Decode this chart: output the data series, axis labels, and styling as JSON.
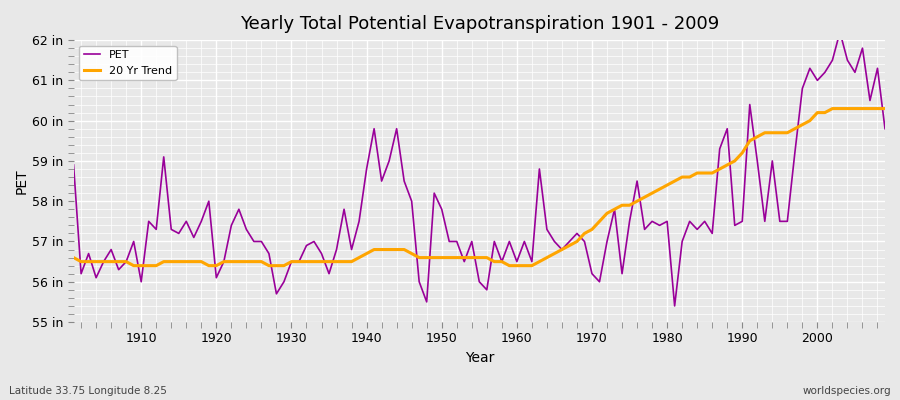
{
  "title": "Yearly Total Potential Evapotranspiration 1901 - 2009",
  "xlabel": "Year",
  "ylabel": "PET",
  "subtitle_left": "Latitude 33.75 Longitude 8.25",
  "watermark": "worldspecies.org",
  "pet_color": "#990099",
  "trend_color": "#ffa500",
  "ylim": [
    55,
    62
  ],
  "xlim": [
    1901,
    2009
  ],
  "yticks": [
    55,
    56,
    57,
    58,
    59,
    60,
    61,
    62
  ],
  "ytick_labels": [
    "55 in",
    "56 in",
    "57 in",
    "58 in",
    "59 in",
    "60 in",
    "61 in",
    "62 in"
  ],
  "xticks": [
    1910,
    1920,
    1930,
    1940,
    1950,
    1960,
    1970,
    1980,
    1990,
    2000
  ],
  "background_color": "#e8e8e8",
  "plot_bg_color": "#e8e8e8",
  "grid_color": "#ffffff",
  "pet_data": {
    "years": [
      1901,
      1902,
      1903,
      1904,
      1905,
      1906,
      1907,
      1908,
      1909,
      1910,
      1911,
      1912,
      1913,
      1914,
      1915,
      1916,
      1917,
      1918,
      1919,
      1920,
      1921,
      1922,
      1923,
      1924,
      1925,
      1926,
      1927,
      1928,
      1929,
      1930,
      1931,
      1932,
      1933,
      1934,
      1935,
      1936,
      1937,
      1938,
      1939,
      1940,
      1941,
      1942,
      1943,
      1944,
      1945,
      1946,
      1947,
      1948,
      1949,
      1950,
      1951,
      1952,
      1953,
      1954,
      1955,
      1956,
      1957,
      1958,
      1959,
      1960,
      1961,
      1962,
      1963,
      1964,
      1965,
      1966,
      1967,
      1968,
      1969,
      1970,
      1971,
      1972,
      1973,
      1974,
      1975,
      1976,
      1977,
      1978,
      1979,
      1980,
      1981,
      1982,
      1983,
      1984,
      1985,
      1986,
      1987,
      1988,
      1989,
      1990,
      1991,
      1992,
      1993,
      1994,
      1995,
      1996,
      1997,
      1998,
      1999,
      2000,
      2001,
      2002,
      2003,
      2004,
      2005,
      2006,
      2007,
      2008,
      2009
    ],
    "values": [
      58.9,
      56.2,
      56.7,
      56.1,
      56.5,
      56.8,
      56.3,
      56.5,
      57.0,
      56.0,
      57.5,
      57.3,
      59.1,
      57.3,
      57.2,
      57.5,
      57.1,
      57.5,
      58.0,
      56.1,
      56.5,
      57.4,
      57.8,
      57.3,
      57.0,
      57.0,
      56.7,
      55.7,
      56.0,
      56.5,
      56.5,
      56.9,
      57.0,
      56.7,
      56.2,
      56.8,
      57.8,
      56.8,
      57.5,
      58.8,
      59.8,
      58.5,
      59.0,
      59.8,
      58.5,
      58.0,
      56.0,
      55.5,
      58.2,
      57.8,
      57.0,
      57.0,
      56.5,
      57.0,
      56.0,
      55.8,
      57.0,
      56.5,
      57.0,
      56.5,
      57.0,
      56.5,
      58.8,
      57.3,
      57.0,
      56.8,
      57.0,
      57.2,
      57.0,
      56.2,
      56.0,
      57.0,
      57.8,
      56.2,
      57.5,
      58.5,
      57.3,
      57.5,
      57.4,
      57.5,
      55.4,
      57.0,
      57.5,
      57.3,
      57.5,
      57.2,
      59.3,
      59.8,
      57.4,
      57.5,
      60.4,
      59.0,
      57.5,
      59.0,
      57.5,
      57.5,
      59.2,
      60.8,
      61.3,
      61.0,
      61.2,
      61.5,
      62.2,
      61.5,
      61.2,
      61.8,
      60.5,
      61.3,
      59.8
    ]
  },
  "trend_data": {
    "years": [
      1901,
      1902,
      1903,
      1904,
      1905,
      1906,
      1907,
      1908,
      1909,
      1910,
      1911,
      1912,
      1913,
      1914,
      1915,
      1916,
      1917,
      1918,
      1919,
      1920,
      1921,
      1922,
      1923,
      1924,
      1925,
      1926,
      1927,
      1928,
      1929,
      1930,
      1931,
      1932,
      1933,
      1934,
      1935,
      1936,
      1937,
      1938,
      1939,
      1940,
      1941,
      1942,
      1943,
      1944,
      1945,
      1946,
      1947,
      1948,
      1949,
      1950,
      1951,
      1952,
      1953,
      1954,
      1955,
      1956,
      1957,
      1958,
      1959,
      1960,
      1961,
      1962,
      1963,
      1964,
      1965,
      1966,
      1967,
      1968,
      1969,
      1970,
      1971,
      1972,
      1973,
      1974,
      1975,
      1976,
      1977,
      1978,
      1979,
      1980,
      1981,
      1982,
      1983,
      1984,
      1985,
      1986,
      1987,
      1988,
      1989,
      1990,
      1991,
      1992,
      1993,
      1994,
      1995,
      1996,
      1997,
      1998,
      1999,
      2000,
      2001,
      2002,
      2003,
      2004,
      2005,
      2006,
      2007,
      2008,
      2009
    ],
    "values": [
      56.6,
      56.5,
      56.5,
      56.5,
      56.5,
      56.5,
      56.5,
      56.5,
      56.4,
      56.4,
      56.4,
      56.4,
      56.5,
      56.5,
      56.5,
      56.5,
      56.5,
      56.5,
      56.4,
      56.4,
      56.5,
      56.5,
      56.5,
      56.5,
      56.5,
      56.5,
      56.4,
      56.4,
      56.4,
      56.5,
      56.5,
      56.5,
      56.5,
      56.5,
      56.5,
      56.5,
      56.5,
      56.5,
      56.6,
      56.7,
      56.8,
      56.8,
      56.8,
      56.8,
      56.8,
      56.7,
      56.6,
      56.6,
      56.6,
      56.6,
      56.6,
      56.6,
      56.6,
      56.6,
      56.6,
      56.6,
      56.5,
      56.5,
      56.4,
      56.4,
      56.4,
      56.4,
      56.5,
      56.6,
      56.7,
      56.8,
      56.9,
      57.0,
      57.2,
      57.3,
      57.5,
      57.7,
      57.8,
      57.9,
      57.9,
      58.0,
      58.1,
      58.2,
      58.3,
      58.4,
      58.5,
      58.6,
      58.6,
      58.7,
      58.7,
      58.7,
      58.8,
      58.9,
      59.0,
      59.2,
      59.5,
      59.6,
      59.7,
      59.7,
      59.7,
      59.7,
      59.8,
      59.9,
      60.0,
      60.2,
      60.2,
      60.3,
      60.3,
      60.3,
      60.3,
      60.3,
      60.3,
      60.3,
      60.3
    ]
  }
}
